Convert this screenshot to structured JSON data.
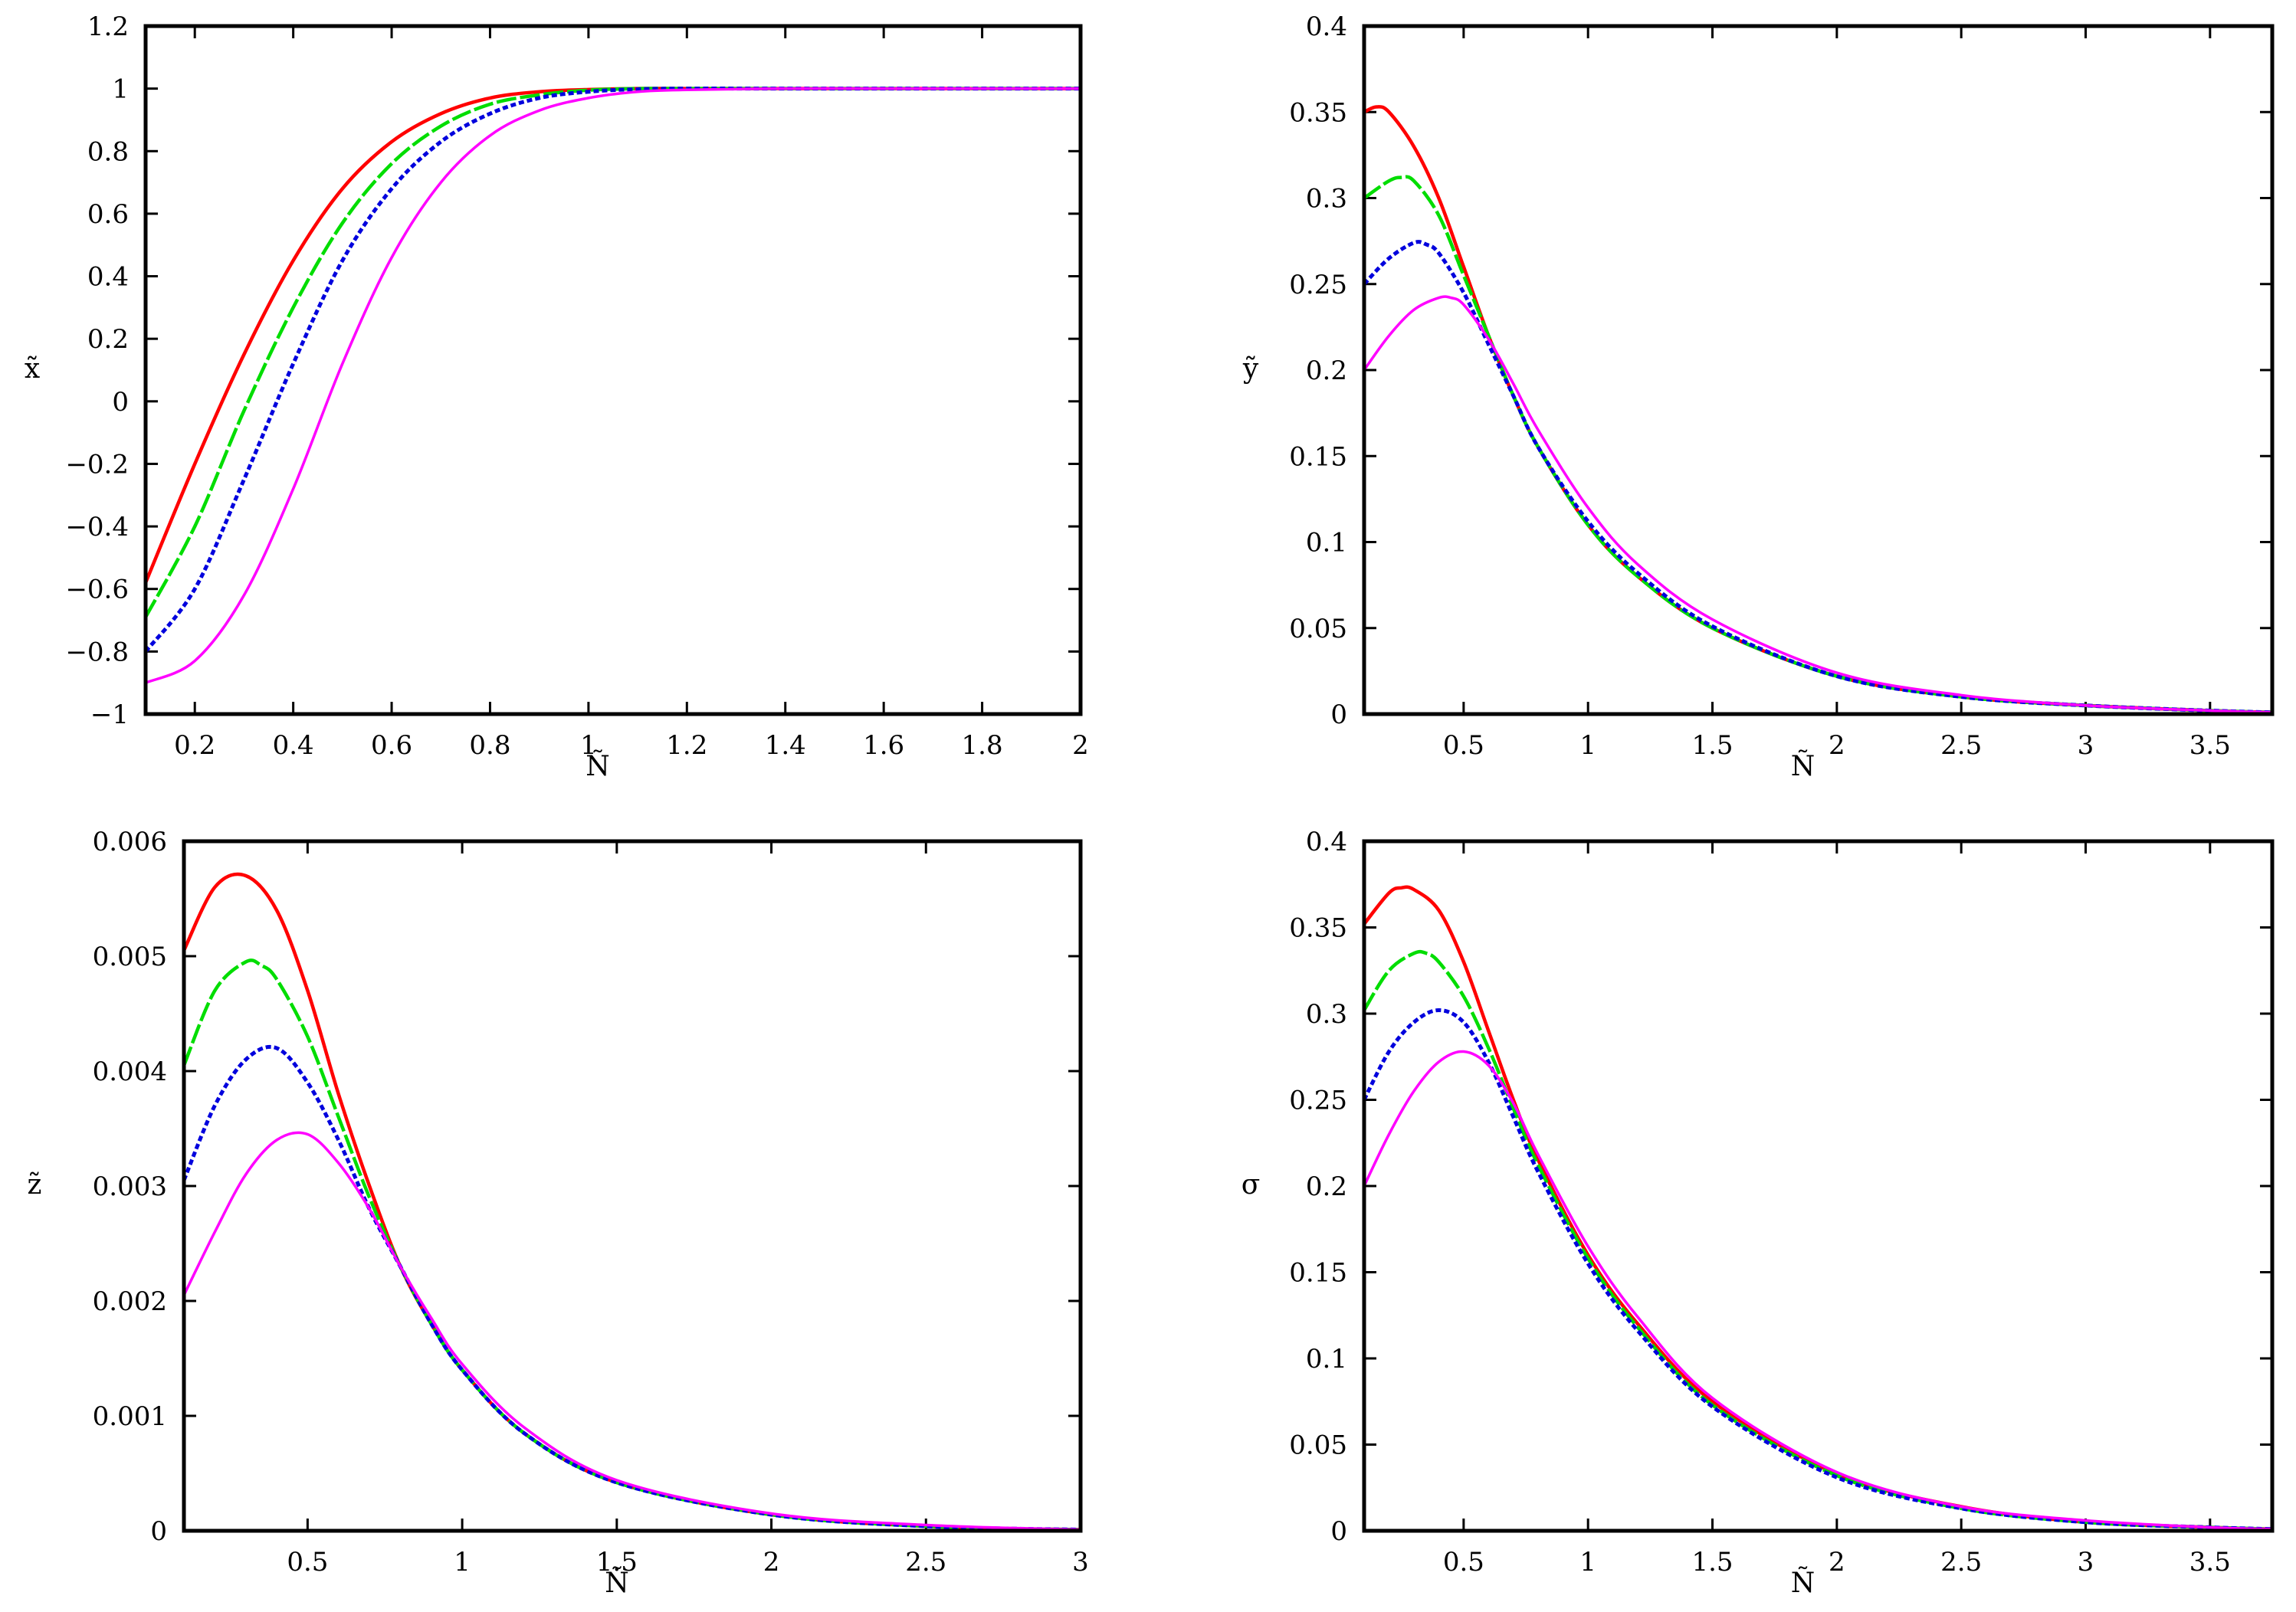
{
  "colors": [
    "#ff0000",
    "#00dd00",
    "#0000dd",
    "#ff00ff"
  ],
  "chart_data": [
    {
      "type": "line",
      "xlabel": "Ñ",
      "ylabel": "x̃",
      "xlim": [
        0.1,
        2
      ],
      "ylim": [
        -1,
        1.2
      ],
      "xticks": [
        0.2,
        0.4,
        0.6,
        0.8,
        1,
        1.2,
        1.4,
        1.6,
        1.8,
        2
      ],
      "xtick_labels": [
        "0.2",
        "0.4",
        "0.6",
        "0.8",
        "1",
        "1.2",
        "1.4",
        "1.6",
        "1.8",
        "2"
      ],
      "yticks": [
        -1,
        -0.8,
        -0.6,
        -0.4,
        -0.2,
        0,
        0.2,
        0.4,
        0.6,
        0.8,
        1,
        1.2
      ],
      "ytick_labels": [
        "−1",
        "−0.8",
        "−0.6",
        "−0.4",
        "−0.2",
        "0",
        "0.2",
        "0.4",
        "0.6",
        "0.8",
        "1",
        "1.2"
      ],
      "series": [
        {
          "x": [
            0.1,
            0.2,
            0.3,
            0.4,
            0.5,
            0.6,
            0.7,
            0.8,
            0.9,
            1.0,
            1.1,
            1.2,
            1.4,
            1.6,
            1.8,
            2.0
          ],
          "y": [
            -0.58,
            -0.2,
            0.15,
            0.45,
            0.68,
            0.83,
            0.92,
            0.97,
            0.99,
            0.997,
            1.0,
            1.0,
            1.0,
            1.0,
            1.0,
            1.0
          ]
        },
        {
          "x": [
            0.1,
            0.2,
            0.3,
            0.4,
            0.5,
            0.6,
            0.7,
            0.8,
            0.9,
            1.0,
            1.1,
            1.2,
            1.4,
            1.6,
            1.8,
            2.0
          ],
          "y": [
            -0.69,
            -0.4,
            -0.03,
            0.3,
            0.57,
            0.76,
            0.88,
            0.95,
            0.98,
            0.995,
            1.0,
            1.0,
            1.0,
            1.0,
            1.0,
            1.0
          ]
        },
        {
          "x": [
            0.1,
            0.2,
            0.3,
            0.4,
            0.5,
            0.6,
            0.7,
            0.8,
            0.9,
            1.0,
            1.1,
            1.2,
            1.4,
            1.6,
            1.8,
            2.0
          ],
          "y": [
            -0.8,
            -0.6,
            -0.25,
            0.12,
            0.45,
            0.68,
            0.83,
            0.92,
            0.97,
            0.99,
            0.998,
            1.0,
            1.0,
            1.0,
            1.0,
            1.0
          ]
        },
        {
          "x": [
            0.1,
            0.2,
            0.3,
            0.4,
            0.5,
            0.6,
            0.7,
            0.8,
            0.9,
            1.0,
            1.1,
            1.2,
            1.4,
            1.6,
            1.8,
            2.0
          ],
          "y": [
            -0.9,
            -0.83,
            -0.62,
            -0.28,
            0.12,
            0.46,
            0.7,
            0.85,
            0.93,
            0.97,
            0.99,
            0.996,
            1.0,
            1.0,
            1.0,
            1.0
          ]
        }
      ]
    },
    {
      "type": "line",
      "xlabel": "Ñ",
      "ylabel": "ỹ",
      "xlim": [
        0.1,
        3.75
      ],
      "ylim": [
        0,
        0.4
      ],
      "xticks": [
        0.5,
        1,
        1.5,
        2,
        2.5,
        3,
        3.5
      ],
      "xtick_labels": [
        "0.5",
        "1",
        "1.5",
        "2",
        "2.5",
        "3",
        "3.5"
      ],
      "yticks": [
        0,
        0.05,
        0.1,
        0.15,
        0.2,
        0.25,
        0.3,
        0.35,
        0.4
      ],
      "ytick_labels": [
        "0",
        "0.05",
        "0.1",
        "0.15",
        "0.2",
        "0.25",
        "0.3",
        "0.35",
        "0.4"
      ],
      "series": [
        {
          "x": [
            0.1,
            0.15,
            0.2,
            0.3,
            0.4,
            0.5,
            0.6,
            0.7,
            0.8,
            1.0,
            1.2,
            1.5,
            2.0,
            2.5,
            3.0,
            3.5,
            3.75
          ],
          "y": [
            0.35,
            0.353,
            0.35,
            0.33,
            0.3,
            0.26,
            0.22,
            0.185,
            0.155,
            0.11,
            0.08,
            0.05,
            0.022,
            0.01,
            0.005,
            0.002,
            0.001
          ]
        },
        {
          "x": [
            0.1,
            0.2,
            0.25,
            0.3,
            0.4,
            0.5,
            0.6,
            0.7,
            0.8,
            1.0,
            1.2,
            1.5,
            2.0,
            2.5,
            3.0,
            3.5,
            3.75
          ],
          "y": [
            0.3,
            0.31,
            0.312,
            0.31,
            0.29,
            0.255,
            0.22,
            0.185,
            0.155,
            0.11,
            0.08,
            0.05,
            0.022,
            0.01,
            0.005,
            0.002,
            0.001
          ]
        },
        {
          "x": [
            0.1,
            0.2,
            0.3,
            0.35,
            0.4,
            0.5,
            0.6,
            0.7,
            0.8,
            1.0,
            1.2,
            1.5,
            2.0,
            2.5,
            3.0,
            3.5,
            3.75
          ],
          "y": [
            0.25,
            0.265,
            0.274,
            0.273,
            0.268,
            0.245,
            0.215,
            0.185,
            0.155,
            0.112,
            0.082,
            0.051,
            0.022,
            0.01,
            0.005,
            0.002,
            0.001
          ]
        },
        {
          "x": [
            0.1,
            0.2,
            0.3,
            0.4,
            0.45,
            0.5,
            0.6,
            0.7,
            0.8,
            1.0,
            1.2,
            1.5,
            2.0,
            2.5,
            3.0,
            3.5,
            3.75
          ],
          "y": [
            0.2,
            0.22,
            0.235,
            0.242,
            0.242,
            0.238,
            0.218,
            0.192,
            0.165,
            0.12,
            0.087,
            0.055,
            0.024,
            0.011,
            0.005,
            0.002,
            0.001
          ]
        }
      ]
    },
    {
      "type": "line",
      "xlabel": "Ñ",
      "ylabel": "z̃",
      "xlim": [
        0.1,
        3
      ],
      "ylim": [
        0,
        0.006
      ],
      "xticks": [
        0.5,
        1,
        1.5,
        2,
        2.5,
        3
      ],
      "xtick_labels": [
        "0.5",
        "1",
        "1.5",
        "2",
        "2.5",
        "3"
      ],
      "yticks": [
        0,
        0.001,
        0.002,
        0.003,
        0.004,
        0.005,
        0.006
      ],
      "ytick_labels": [
        "0",
        "0.001",
        "0.002",
        "0.003",
        "0.004",
        "0.005",
        "0.006"
      ],
      "series": [
        {
          "x": [
            0.1,
            0.2,
            0.3,
            0.4,
            0.5,
            0.6,
            0.7,
            0.8,
            0.9,
            1.0,
            1.2,
            1.5,
            2.0,
            2.5,
            3.0
          ],
          "y": [
            0.00505,
            0.0056,
            0.0057,
            0.0054,
            0.0047,
            0.0038,
            0.003,
            0.0023,
            0.0018,
            0.0014,
            0.00085,
            0.00042,
            0.00014,
            4e-05,
            1e-05
          ]
        },
        {
          "x": [
            0.1,
            0.2,
            0.3,
            0.35,
            0.4,
            0.5,
            0.6,
            0.7,
            0.8,
            0.9,
            1.0,
            1.2,
            1.5,
            2.0,
            2.5,
            3.0
          ],
          "y": [
            0.00405,
            0.0047,
            0.00495,
            0.00492,
            0.0048,
            0.0043,
            0.0036,
            0.0029,
            0.0023,
            0.0018,
            0.0014,
            0.00085,
            0.00042,
            0.00014,
            4e-05,
            1e-05
          ]
        },
        {
          "x": [
            0.1,
            0.2,
            0.3,
            0.4,
            0.5,
            0.6,
            0.7,
            0.8,
            0.9,
            1.0,
            1.2,
            1.5,
            2.0,
            2.5,
            3.0
          ],
          "y": [
            0.00305,
            0.0037,
            0.0041,
            0.0042,
            0.0039,
            0.0034,
            0.0028,
            0.0023,
            0.0018,
            0.0014,
            0.00085,
            0.00042,
            0.00014,
            4e-05,
            1e-05
          ]
        },
        {
          "x": [
            0.1,
            0.2,
            0.3,
            0.4,
            0.5,
            0.6,
            0.7,
            0.8,
            0.9,
            1.0,
            1.2,
            1.5,
            2.0,
            2.5,
            3.0
          ],
          "y": [
            0.00205,
            0.0026,
            0.0031,
            0.0034,
            0.00345,
            0.0032,
            0.0028,
            0.0023,
            0.00185,
            0.00145,
            0.0009,
            0.00044,
            0.00015,
            5e-05,
            1e-05
          ]
        }
      ]
    },
    {
      "type": "line",
      "xlabel": "Ñ",
      "ylabel": "σ",
      "xlim": [
        0.1,
        3.75
      ],
      "ylim": [
        0,
        0.4
      ],
      "xticks": [
        0.5,
        1,
        1.5,
        2,
        2.5,
        3,
        3.5
      ],
      "xtick_labels": [
        "0.5",
        "1",
        "1.5",
        "2",
        "2.5",
        "3",
        "3.5"
      ],
      "yticks": [
        0,
        0.05,
        0.1,
        0.15,
        0.2,
        0.25,
        0.3,
        0.35,
        0.4
      ],
      "ytick_labels": [
        "0",
        "0.05",
        "0.1",
        "0.15",
        "0.2",
        "0.25",
        "0.3",
        "0.35",
        "0.4"
      ],
      "series": [
        {
          "x": [
            0.1,
            0.2,
            0.25,
            0.3,
            0.4,
            0.5,
            0.6,
            0.7,
            0.8,
            1.0,
            1.2,
            1.5,
            2.0,
            2.5,
            3.0,
            3.5,
            3.75
          ],
          "y": [
            0.352,
            0.37,
            0.373,
            0.372,
            0.36,
            0.33,
            0.29,
            0.25,
            0.215,
            0.16,
            0.12,
            0.075,
            0.033,
            0.014,
            0.005,
            0.002,
            0.001
          ]
        },
        {
          "x": [
            0.1,
            0.2,
            0.3,
            0.35,
            0.4,
            0.5,
            0.6,
            0.7,
            0.8,
            1.0,
            1.2,
            1.5,
            2.0,
            2.5,
            3.0,
            3.5,
            3.75
          ],
          "y": [
            0.302,
            0.325,
            0.335,
            0.335,
            0.33,
            0.31,
            0.28,
            0.245,
            0.212,
            0.158,
            0.118,
            0.073,
            0.032,
            0.013,
            0.005,
            0.002,
            0.001
          ]
        },
        {
          "x": [
            0.1,
            0.2,
            0.3,
            0.4,
            0.5,
            0.6,
            0.7,
            0.8,
            1.0,
            1.2,
            1.5,
            2.0,
            2.5,
            3.0,
            3.5,
            3.75
          ],
          "y": [
            0.25,
            0.278,
            0.295,
            0.302,
            0.295,
            0.272,
            0.24,
            0.208,
            0.155,
            0.116,
            0.072,
            0.031,
            0.013,
            0.005,
            0.002,
            0.001
          ]
        },
        {
          "x": [
            0.1,
            0.2,
            0.3,
            0.4,
            0.5,
            0.6,
            0.7,
            0.8,
            1.0,
            1.2,
            1.5,
            2.0,
            2.5,
            3.0,
            3.5,
            3.75
          ],
          "y": [
            0.2,
            0.23,
            0.255,
            0.272,
            0.278,
            0.27,
            0.248,
            0.218,
            0.165,
            0.124,
            0.077,
            0.034,
            0.014,
            0.006,
            0.002,
            0.001
          ]
        }
      ]
    }
  ]
}
